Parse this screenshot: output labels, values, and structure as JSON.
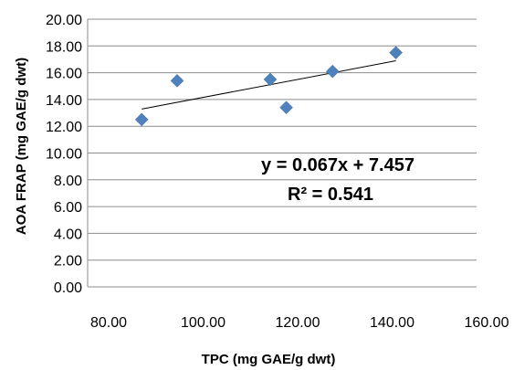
{
  "chart_data": {
    "type": "scatter",
    "xlabel": "TPC (mg GAE/g dwt)",
    "ylabel": "AOA FRAP (mg GAE/g dwt)",
    "xlim": [
      80,
      160
    ],
    "ylim": [
      0,
      20
    ],
    "x_ticks": [
      "80.00",
      "100.00",
      "120.00",
      "140.00",
      "160.00"
    ],
    "y_ticks": [
      "0.00",
      "2.00",
      "4.00",
      "6.00",
      "8.00",
      "10.00",
      "12.00",
      "14.00",
      "16.00",
      "18.00",
      "20.00"
    ],
    "grid": "horizontal",
    "marker": "diamond",
    "marker_color": "#4F81BD",
    "points": [
      {
        "x": 87.0,
        "y": 12.5
      },
      {
        "x": 94.5,
        "y": 15.4
      },
      {
        "x": 114.2,
        "y": 15.5
      },
      {
        "x": 117.6,
        "y": 13.4
      },
      {
        "x": 127.4,
        "y": 16.1
      },
      {
        "x": 140.8,
        "y": 17.5
      }
    ],
    "trendline": {
      "type": "linear",
      "slope": 0.067,
      "intercept": 7.457,
      "x_start": 87.0,
      "x_end": 140.8
    },
    "equation_label": "y = 0.067x + 7.457",
    "r2_label": "R² = 0.541"
  }
}
